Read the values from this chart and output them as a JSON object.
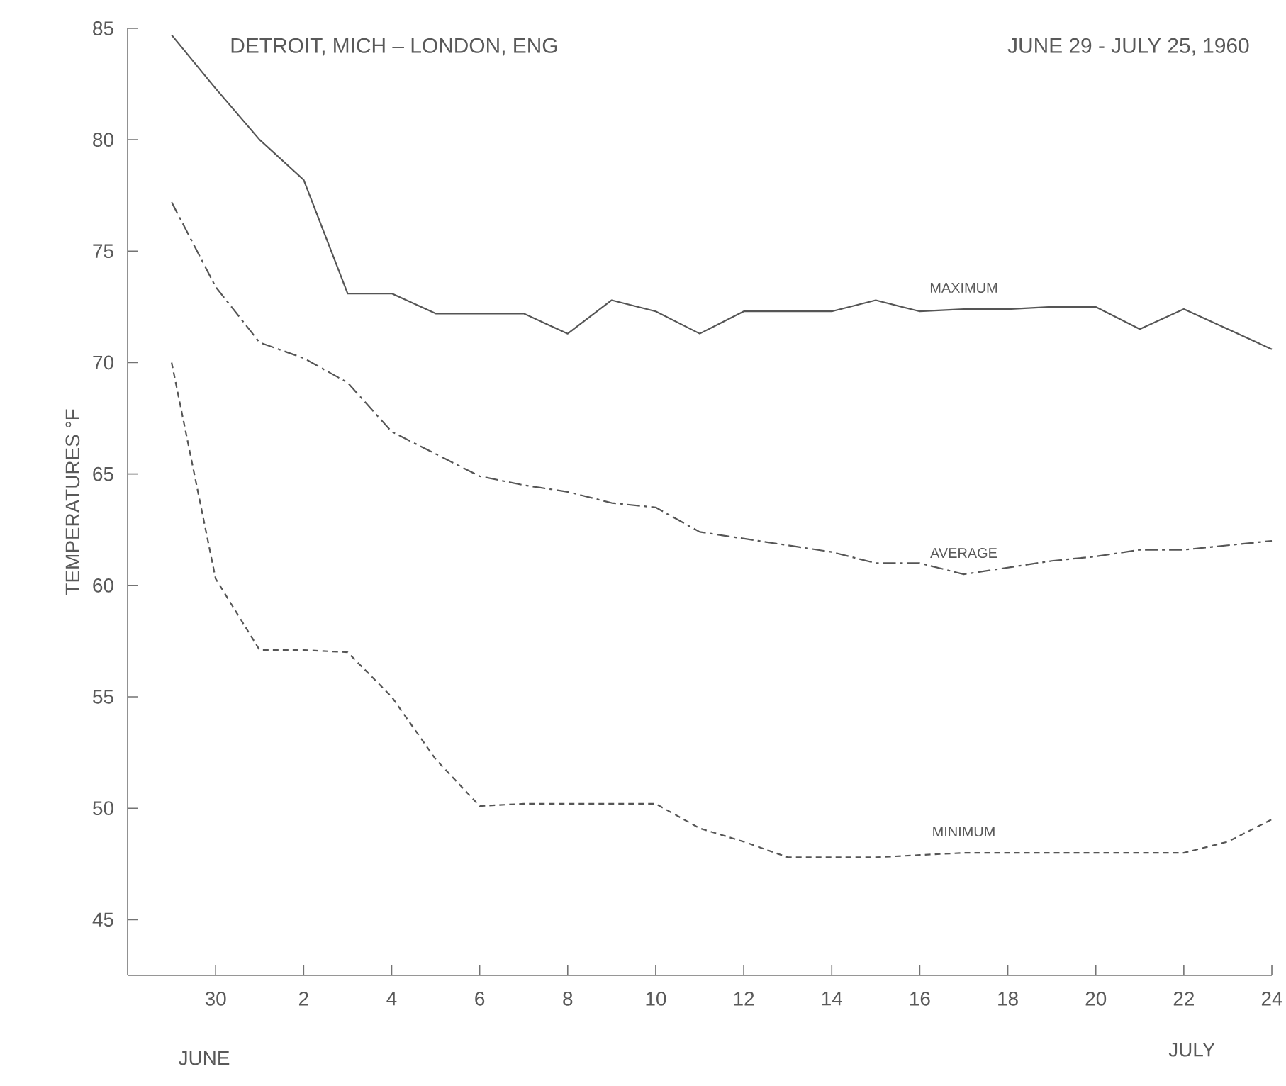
{
  "chart_data": {
    "type": "line",
    "title": "DETROIT, MICH – LONDON, ENG",
    "subtitle": "JUNE 29 - JULY 25, 1960",
    "ylabel": "TEMPERATURES °F",
    "annotations": [
      "JUNE",
      "JULY"
    ],
    "x": [
      "1960-06-29",
      "1960-06-30",
      "1960-07-01",
      "1960-07-02",
      "1960-07-03",
      "1960-07-04",
      "1960-07-05",
      "1960-07-06",
      "1960-07-07",
      "1960-07-08",
      "1960-07-09",
      "1960-07-10",
      "1960-07-11",
      "1960-07-12",
      "1960-07-13",
      "1960-07-14",
      "1960-07-15",
      "1960-07-16",
      "1960-07-17",
      "1960-07-18",
      "1960-07-19",
      "1960-07-20",
      "1960-07-21",
      "1960-07-22",
      "1960-07-23",
      "1960-07-24"
    ],
    "series": [
      {
        "name": "MAXIMUM",
        "color": "#555555",
        "line_style": "solid",
        "values": [
          84.7,
          82.3,
          80.0,
          78.2,
          73.1,
          73.1,
          72.2,
          72.2,
          72.2,
          71.3,
          72.8,
          72.3,
          71.3,
          72.3,
          72.3,
          72.3,
          72.8,
          72.3,
          72.4,
          72.4,
          72.5,
          72.5,
          71.5,
          72.4,
          71.5,
          70.6
        ]
      },
      {
        "name": "AVERAGE",
        "color": "#555555",
        "line_style": "dashdot",
        "values": [
          77.2,
          73.4,
          70.9,
          70.2,
          69.1,
          66.9,
          65.9,
          64.9,
          64.5,
          64.2,
          63.7,
          63.5,
          62.4,
          62.1,
          61.8,
          61.5,
          61.0,
          61.0,
          60.5,
          60.8,
          61.1,
          61.3,
          61.6,
          61.6,
          61.8,
          62.0
        ]
      },
      {
        "name": "MINIMUM",
        "color": "#555555",
        "line_style": "dashed",
        "values": [
          70.0,
          60.3,
          57.1,
          57.1,
          57.0,
          55.0,
          52.2,
          50.1,
          50.2,
          50.2,
          50.2,
          50.2,
          49.1,
          48.5,
          47.8,
          47.8,
          47.8,
          47.9,
          48.0,
          48.0,
          48.0,
          48.0,
          48.0,
          48.0,
          48.5,
          49.5
        ]
      }
    ],
    "xlim": [
      "1960-06-28",
      "1960-07-24"
    ],
    "xticks": [
      {
        "value": "1960-06-30",
        "label": "30"
      },
      {
        "value": "1960-07-02",
        "label": "2"
      },
      {
        "value": "1960-07-04",
        "label": "4"
      },
      {
        "value": "1960-07-06",
        "label": "6"
      },
      {
        "value": "1960-07-08",
        "label": "8"
      },
      {
        "value": "1960-07-10",
        "label": "10"
      },
      {
        "value": "1960-07-12",
        "label": "12"
      },
      {
        "value": "1960-07-14",
        "label": "14"
      },
      {
        "value": "1960-07-16",
        "label": "16"
      },
      {
        "value": "1960-07-18",
        "label": "18"
      },
      {
        "value": "1960-07-20",
        "label": "20"
      },
      {
        "value": "1960-07-22",
        "label": "22"
      },
      {
        "value": "1960-07-24",
        "label": "24"
      }
    ],
    "ylim": [
      42.5,
      85
    ],
    "yticks": [
      45,
      50,
      55,
      60,
      65,
      70,
      75,
      80,
      85
    ],
    "grid": false,
    "marker": "none"
  }
}
